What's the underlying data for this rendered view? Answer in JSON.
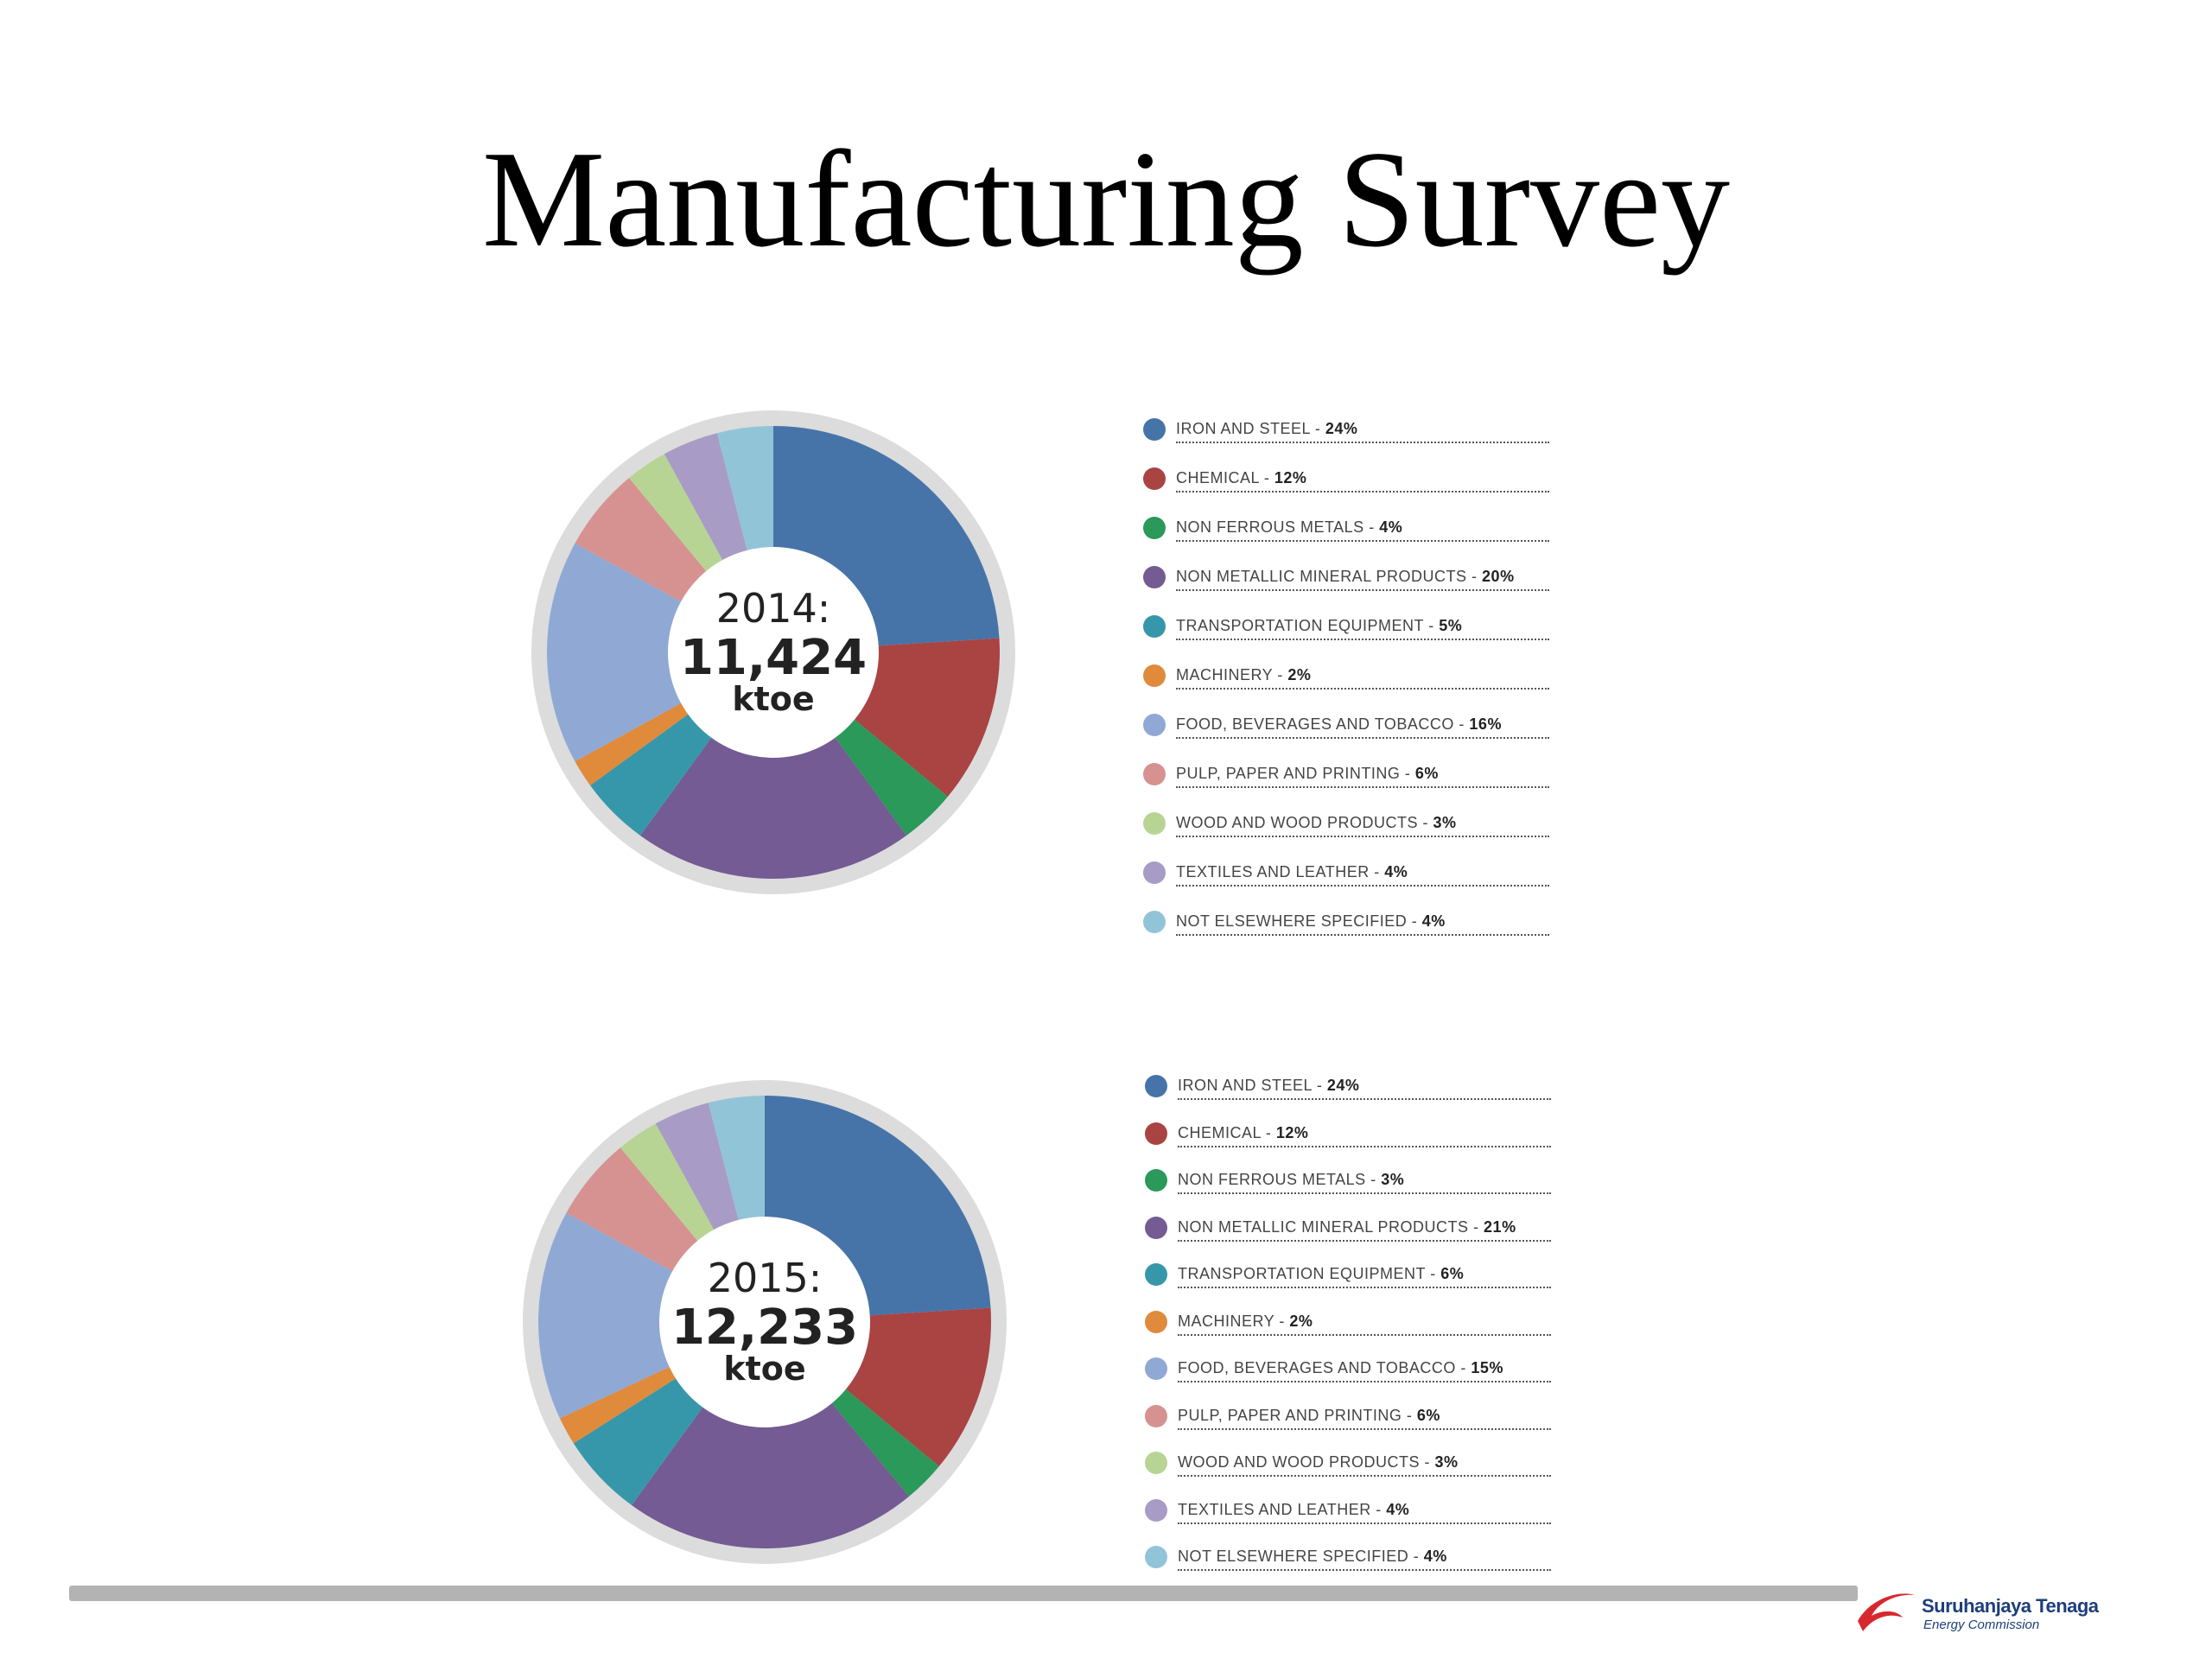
{
  "slide": {
    "title": "Manufacturing Survey"
  },
  "chart_data": [
    {
      "type": "pie",
      "center_label": {
        "year": "2014:",
        "total": "11,424",
        "unit": "ktoe"
      },
      "legend_position": "right",
      "slices": [
        {
          "label": "IRON AND STEEL",
          "pct_text": "24%",
          "value": 24,
          "color": "#4674a9"
        },
        {
          "label": "CHEMICAL",
          "pct_text": "12%",
          "value": 12,
          "color": "#a94443"
        },
        {
          "label": "NON FERROUS METALS",
          "pct_text": "4%",
          "value": 4,
          "color": "#2a9959"
        },
        {
          "label": "NON METALLIC MINERAL PRODUCTS",
          "pct_text": "20%",
          "value": 20,
          "color": "#745b93"
        },
        {
          "label": "TRANSPORTATION EQUIPMENT",
          "pct_text": "5%",
          "value": 5,
          "color": "#3797aa"
        },
        {
          "label": "MACHINERY",
          "pct_text": "2%",
          "value": 2,
          "color": "#e08a3c"
        },
        {
          "label": "FOOD, BEVERAGES AND TOBACCO",
          "pct_text": "16%",
          "value": 16,
          "color": "#90a9d4"
        },
        {
          "label": "PULP, PAPER AND PRINTING",
          "pct_text": "6%",
          "value": 6,
          "color": "#d69291"
        },
        {
          "label": "WOOD AND WOOD PRODUCTS",
          "pct_text": "3%",
          "value": 3,
          "color": "#b8d494"
        },
        {
          "label": "TEXTILES AND LEATHER",
          "pct_text": "4%",
          "value": 4,
          "color": "#a89cc6"
        },
        {
          "label": "NOT ELSEWHERE SPECIFIED",
          "pct_text": "4%",
          "value": 4,
          "color": "#92c4d8"
        }
      ]
    },
    {
      "type": "pie",
      "center_label": {
        "year": "2015:",
        "total": "12,233",
        "unit": "ktoe"
      },
      "legend_position": "right",
      "slices": [
        {
          "label": "IRON AND STEEL",
          "pct_text": "24%",
          "value": 24,
          "color": "#4674a9"
        },
        {
          "label": "CHEMICAL",
          "pct_text": "12%",
          "value": 12,
          "color": "#a94443"
        },
        {
          "label": "NON FERROUS METALS",
          "pct_text": "3%",
          "value": 3,
          "color": "#2a9959"
        },
        {
          "label": "NON METALLIC MINERAL PRODUCTS",
          "pct_text": "21%",
          "value": 21,
          "color": "#745b93"
        },
        {
          "label": "TRANSPORTATION EQUIPMENT",
          "pct_text": "6%",
          "value": 6,
          "color": "#3797aa"
        },
        {
          "label": "MACHINERY",
          "pct_text": "2%",
          "value": 2,
          "color": "#e08a3c"
        },
        {
          "label": "FOOD, BEVERAGES AND TOBACCO",
          "pct_text": "15%",
          "value": 15,
          "color": "#90a9d4"
        },
        {
          "label": "PULP, PAPER AND PRINTING",
          "pct_text": "6%",
          "value": 6,
          "color": "#d69291"
        },
        {
          "label": "WOOD AND WOOD PRODUCTS",
          "pct_text": "3%",
          "value": 3,
          "color": "#b8d494"
        },
        {
          "label": "TEXTILES AND LEATHER",
          "pct_text": "4%",
          "value": 4,
          "color": "#a89cc6"
        },
        {
          "label": "NOT ELSEWHERE SPECIFIED",
          "pct_text": "4%",
          "value": 4,
          "color": "#92c4d8"
        }
      ]
    }
  ],
  "footer": {
    "logo_name": "Suruhanjaya Tenaga",
    "logo_sub": "Energy Commission",
    "logo_colors": {
      "swoosh": "#d7282f",
      "text": "#1d3e7a"
    }
  }
}
